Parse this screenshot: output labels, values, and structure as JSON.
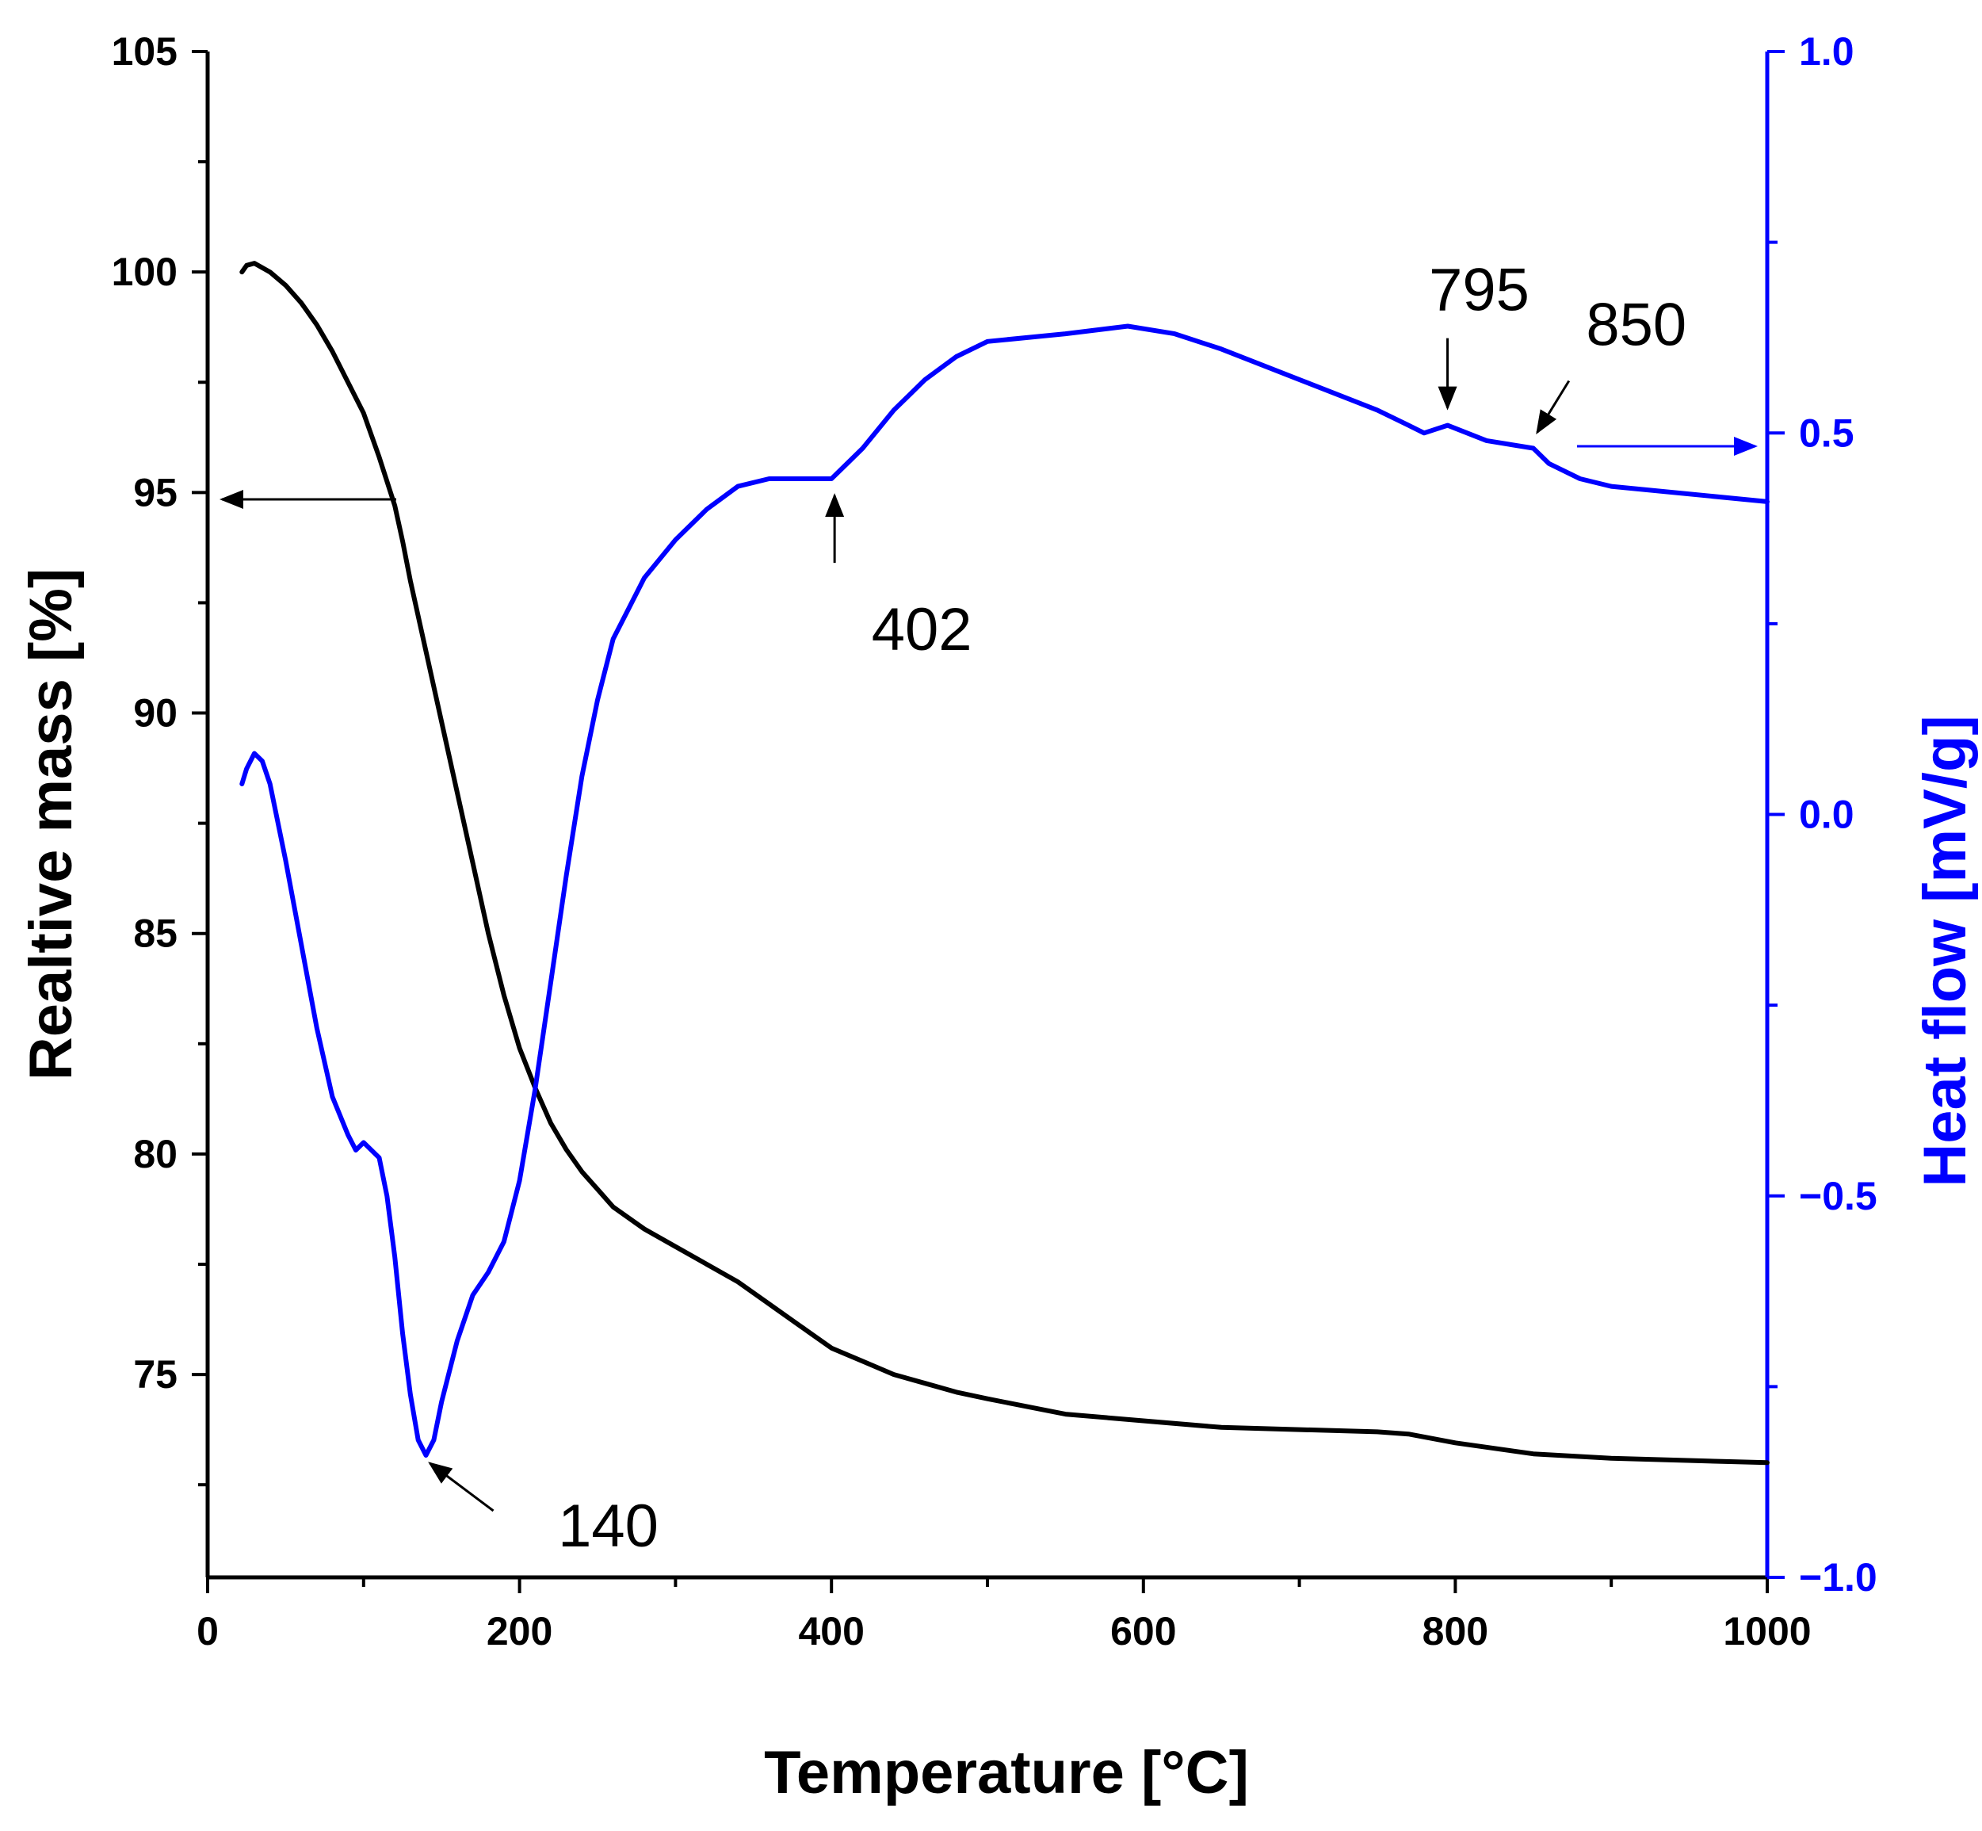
{
  "chart_data": {
    "type": "line",
    "xlabel": "Temperature [°C]",
    "ylabel": "Realtive mass [%]",
    "y2label": "Heat flow [mV/g]",
    "xlim": [
      0,
      1000
    ],
    "ylim": [
      70.4,
      105
    ],
    "y2lim": [
      -1.0,
      1.0
    ],
    "xticks": [
      "0",
      "200",
      "400",
      "600",
      "800",
      "1000"
    ],
    "yticks": [
      "75",
      "80",
      "85",
      "90",
      "95",
      "100",
      "105"
    ],
    "y2ticks": [
      "−1.0",
      "−0.5",
      "0.0",
      "0.5",
      "1.0"
    ],
    "colors": {
      "mass": "#000000",
      "heat": "#0000ff"
    },
    "series": [
      {
        "name": "Relative mass",
        "axis": "left",
        "color": "#000000",
        "x": [
          22,
          25,
          30,
          40,
          50,
          60,
          70,
          80,
          90,
          100,
          110,
          120,
          125,
          130,
          140,
          150,
          160,
          170,
          180,
          190,
          200,
          210,
          220,
          230,
          240,
          250,
          260,
          280,
          300,
          320,
          340,
          360,
          380,
          400,
          420,
          440,
          460,
          480,
          500,
          550,
          600,
          650,
          700,
          750,
          770,
          800,
          850,
          900,
          1000
        ],
        "y": [
          100.0,
          100.15,
          100.2,
          100.0,
          99.7,
          99.3,
          98.8,
          98.2,
          97.5,
          96.8,
          95.8,
          94.7,
          93.9,
          93.0,
          91.4,
          89.8,
          88.2,
          86.6,
          85.0,
          83.6,
          82.4,
          81.5,
          80.7,
          80.1,
          79.6,
          79.2,
          78.8,
          78.3,
          77.9,
          77.5,
          77.1,
          76.6,
          76.1,
          75.6,
          75.3,
          75.0,
          74.8,
          74.6,
          74.45,
          74.1,
          73.95,
          73.8,
          73.75,
          73.7,
          73.65,
          73.45,
          73.2,
          73.1,
          73.0
        ]
      },
      {
        "name": "Heat flow",
        "axis": "right",
        "color": "#0000ff",
        "x": [
          22,
          25,
          30,
          35,
          40,
          50,
          60,
          70,
          80,
          90,
          95,
          100,
          110,
          115,
          120,
          125,
          130,
          135,
          140,
          145,
          150,
          160,
          170,
          180,
          190,
          200,
          210,
          220,
          230,
          240,
          250,
          260,
          270,
          280,
          300,
          320,
          340,
          360,
          380,
          400,
          410,
          420,
          440,
          460,
          480,
          500,
          550,
          590,
          620,
          650,
          700,
          750,
          770,
          780,
          795,
          820,
          850,
          860,
          880,
          900,
          1000
        ],
        "y": [
          0.04,
          0.06,
          0.08,
          0.07,
          0.04,
          -0.06,
          -0.17,
          -0.28,
          -0.37,
          -0.42,
          -0.44,
          -0.43,
          -0.45,
          -0.5,
          -0.58,
          -0.68,
          -0.76,
          -0.82,
          -0.84,
          -0.82,
          -0.77,
          -0.69,
          -0.63,
          -0.6,
          -0.56,
          -0.48,
          -0.36,
          -0.22,
          -0.08,
          0.05,
          0.15,
          0.23,
          0.27,
          0.31,
          0.36,
          0.4,
          0.43,
          0.44,
          0.44,
          0.44,
          0.46,
          0.48,
          0.53,
          0.57,
          0.6,
          0.62,
          0.63,
          0.64,
          0.63,
          0.61,
          0.57,
          0.53,
          0.51,
          0.5,
          0.51,
          0.49,
          0.48,
          0.46,
          0.44,
          0.43,
          0.41
        ]
      }
    ],
    "annotations": [
      {
        "text": "140",
        "x": 140,
        "series": "Heat flow"
      },
      {
        "text": "402",
        "x": 402,
        "series": "Heat flow"
      },
      {
        "text": "795",
        "x": 795,
        "series": "Heat flow"
      },
      {
        "text": "850",
        "x": 850,
        "series": "Heat flow"
      }
    ]
  }
}
